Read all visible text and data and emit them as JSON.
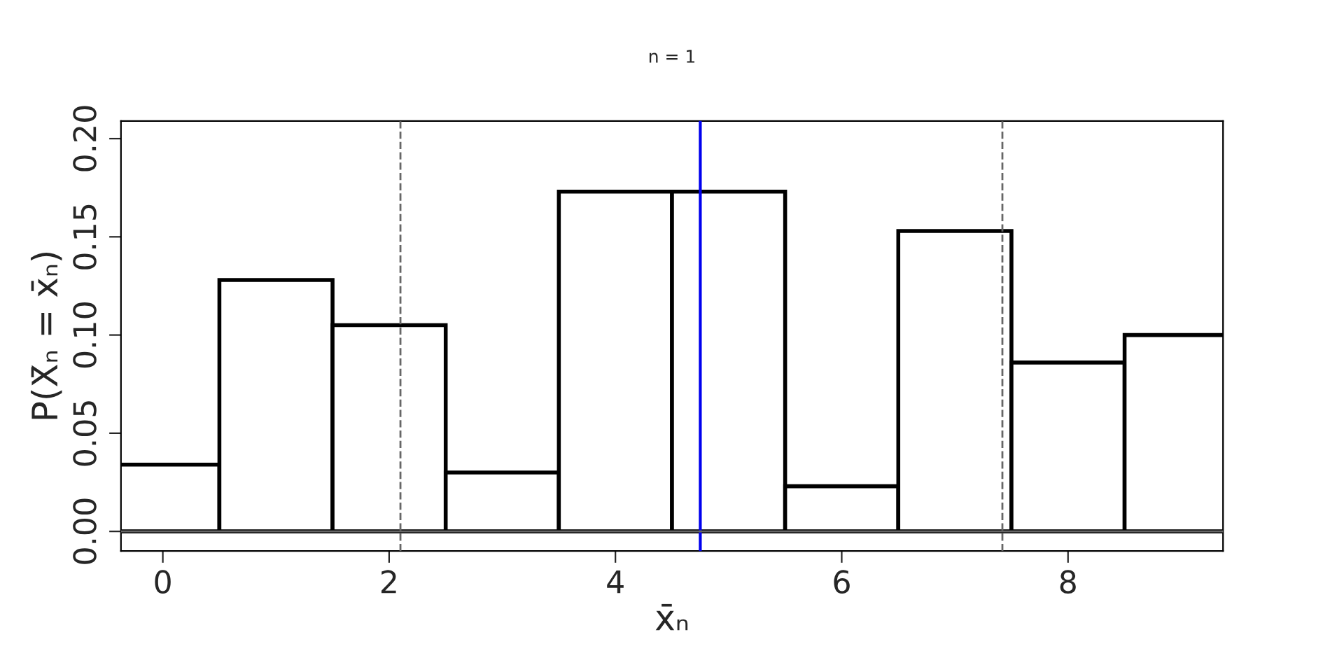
{
  "chart_data": {
    "type": "bar",
    "title": "n = 1",
    "xlabel": "x̄ₙ",
    "ylabel": "P(X̄ₙ = x̄ₙ)",
    "x": [
      0,
      1,
      2,
      3,
      4,
      5,
      6,
      7,
      8,
      9
    ],
    "values": [
      0.034,
      0.128,
      0.105,
      0.03,
      0.173,
      0.173,
      0.023,
      0.153,
      0.086,
      0.1
    ],
    "color": "#ffffff",
    "xlim": [
      -0.37,
      9.37
    ],
    "ylim": [
      -0.01,
      0.209
    ],
    "xticks": [
      0,
      2,
      4,
      6,
      8
    ],
    "yticks": [
      {
        "value": 0,
        "label": "0.00"
      },
      {
        "value": 0.05,
        "label": "0.05"
      },
      {
        "value": 0.1,
        "label": "0.10"
      },
      {
        "value": 0.15,
        "label": "0.15"
      },
      {
        "value": 0.2,
        "label": "0.20"
      }
    ],
    "ref_lines": [
      {
        "axis": "x",
        "value": 4.75,
        "color": "#0000ee",
        "line_style": "solid"
      },
      {
        "axis": "x",
        "value": 2.1,
        "color": "#666666",
        "line_style": "dashed"
      },
      {
        "axis": "x",
        "value": 7.42,
        "color": "#666666",
        "line_style": "dashed"
      },
      {
        "axis": "y",
        "value": 0,
        "color": "#666666",
        "line_style": "solid"
      }
    ],
    "grid": false,
    "legend": false
  }
}
